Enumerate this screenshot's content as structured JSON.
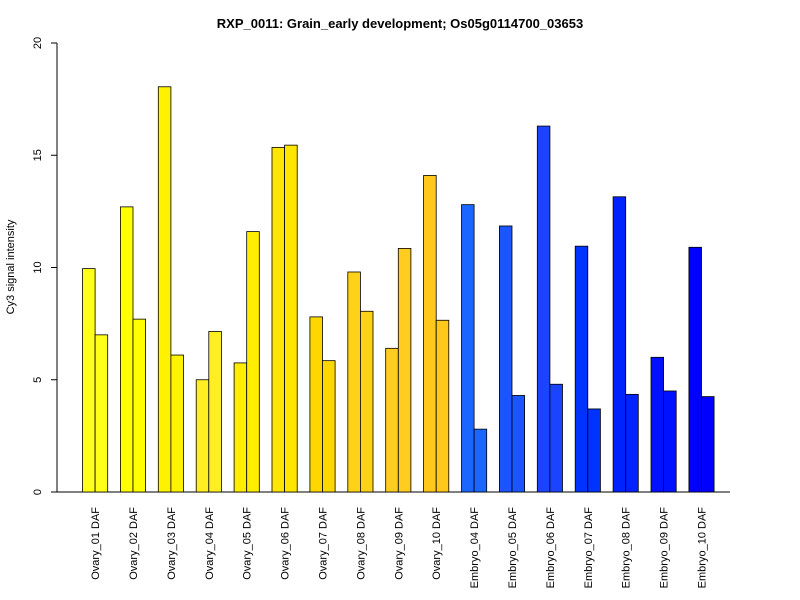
{
  "chart_data": {
    "type": "bar",
    "title": "RXP_0011: Grain_early development; Os05g0114700_03653",
    "xlabel": "",
    "ylabel": "Cy3 signal intensity",
    "ylim": [
      0,
      20
    ],
    "yticks": [
      0,
      5,
      10,
      15,
      20
    ],
    "grid": false,
    "categories": [
      "Ovary_01 DAF",
      "Ovary_02 DAF",
      "Ovary_03 DAF",
      "Ovary_04 DAF",
      "Ovary_05 DAF",
      "Ovary_06 DAF",
      "Ovary_07 DAF",
      "Ovary_08 DAF",
      "Ovary_09 DAF",
      "Ovary_10 DAF",
      "Embryo_04 DAF",
      "Embryo_05 DAF",
      "Embryo_06 DAF",
      "Embryo_07 DAF",
      "Embryo_08 DAF",
      "Embryo_09 DAF",
      "Embryo_10 DAF"
    ],
    "group_colors": [
      "#ffff1a",
      "#ffff00",
      "#fff200",
      "#ffee22",
      "#ffee00",
      "#ffe600",
      "#ffd700",
      "#ffd21a",
      "#ffcc22",
      "#ffc81a",
      "#1a66ff",
      "#1a55ff",
      "#1a44ff",
      "#0033ff",
      "#0022ff",
      "#0011ff",
      "#0000ff"
    ],
    "series": [
      {
        "values": [
          9.95,
          12.7,
          18.05,
          5.0,
          5.75,
          15.35,
          7.8,
          9.8,
          6.4,
          14.1,
          12.8,
          11.85,
          16.3,
          10.95,
          13.15,
          6.0,
          10.9
        ]
      },
      {
        "values": [
          7.0,
          7.7,
          6.1,
          7.15,
          11.6,
          15.45,
          5.85,
          8.05,
          10.85,
          7.65,
          2.8,
          4.3,
          4.8,
          3.7,
          4.35,
          4.5,
          4.25
        ]
      }
    ]
  }
}
